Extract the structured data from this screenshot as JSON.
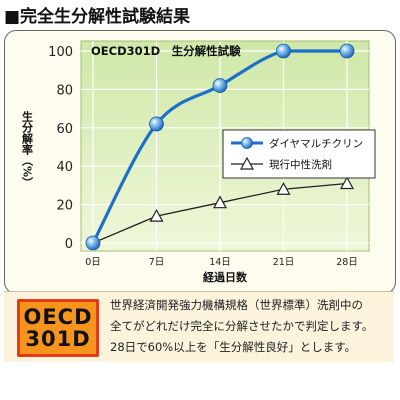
{
  "heading": "■完全生分解性試験結果",
  "chart_data": {
    "type": "line",
    "title": "OECD301D　生分解性試験",
    "xlabel": "経過日数",
    "ylabel": "生分解率（%）",
    "categories": [
      "0日",
      "7日",
      "14日",
      "21日",
      "28日"
    ],
    "x": [
      0,
      7,
      14,
      21,
      28
    ],
    "ylim": [
      0,
      100
    ],
    "yticks": [
      0,
      20,
      40,
      60,
      80,
      100
    ],
    "grid": true,
    "legend": "right",
    "series": [
      {
        "name": "ダイヤマルチクリン",
        "values": [
          0,
          62,
          82,
          100,
          100
        ],
        "color": "#1e6fc9",
        "marker": "sphere"
      },
      {
        "name": "現行中性洗剤",
        "values": [
          0,
          14,
          21,
          28,
          31
        ],
        "color": "#222222",
        "marker": "triangle"
      }
    ]
  },
  "badge": {
    "line1": "OECD",
    "line2": "301D"
  },
  "description": [
    "世界経済開発強力機構規格（世界標準）洗剤中の",
    "全てがどれだけ完全に分解させたかで判定します。",
    "28日で60%以上を「生分解性良好」とします。"
  ]
}
